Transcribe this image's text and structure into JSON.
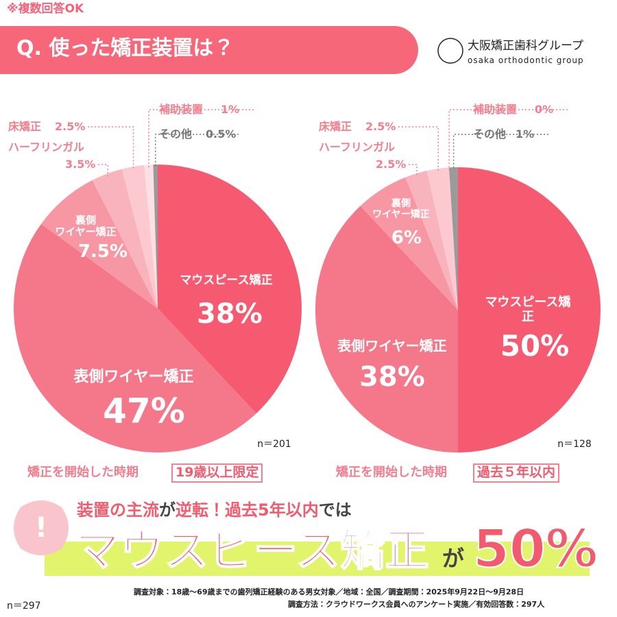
{
  "header": {
    "note": "※複数回答OK",
    "question": "Q. 使った矯正装置は？",
    "logo_name": "大阪矯正歯科グループ",
    "logo_sub": "osaka orthodontic group"
  },
  "chart_data": [
    {
      "type": "pie",
      "categories": [
        "マウスピース矯正",
        "表側ワイヤー矯正",
        "裏側\nワイヤー矯正",
        "ハーフリンガル",
        "床矯正",
        "補助装置",
        "その他"
      ],
      "values": [
        38,
        47,
        7.5,
        3.5,
        2.5,
        1,
        0.5
      ],
      "value_labels": [
        "38%",
        "47%",
        "7.5%",
        "3.5%",
        "2.5%",
        "1%",
        "0.5%"
      ],
      "colors": [
        "#f65a70",
        "#f5788a",
        "#f797a4",
        "#f9b3bc",
        "#fbc9cf",
        "#fde0e4",
        "#9a9a9a"
      ],
      "n_label": "n＝201",
      "condition_label": "矯正を開始した時期",
      "condition": "19歳以上限定"
    },
    {
      "type": "pie",
      "categories": [
        "マウスピース矯正",
        "表側ワイヤー矯正",
        "裏側\nワイヤー矯正",
        "ハーフリンガル",
        "床矯正",
        "補助装置",
        "その他"
      ],
      "values": [
        50,
        38,
        6,
        2.5,
        2.5,
        0,
        1
      ],
      "value_labels": [
        "50%",
        "38%",
        "6%",
        "2.5%",
        "2.5%",
        "0%",
        "1%"
      ],
      "colors": [
        "#f65a70",
        "#f5788a",
        "#f797a4",
        "#f9b3bc",
        "#fbc9cf",
        "#fde0e4",
        "#9a9a9a"
      ],
      "n_label": "n＝128",
      "condition_label": "矯正を開始した時期",
      "condition": "過去５年以内"
    }
  ],
  "headline": {
    "line1": [
      "装置の主流",
      "が",
      "逆転！",
      "過去5年以内",
      "では"
    ],
    "big": "マウスピース矯正",
    "particle": "が",
    "figure": "50%"
  },
  "footer": {
    "line1": "調査対象：18歳～69歳までの歯列矯正経験のある男女対象／地域：全国／調査期間：2025年9月22日～9月28日",
    "line2": "調査方法：クラウドワークス会員へのアンケート実施／有効回答数：297人",
    "n_total": "n＝297"
  }
}
